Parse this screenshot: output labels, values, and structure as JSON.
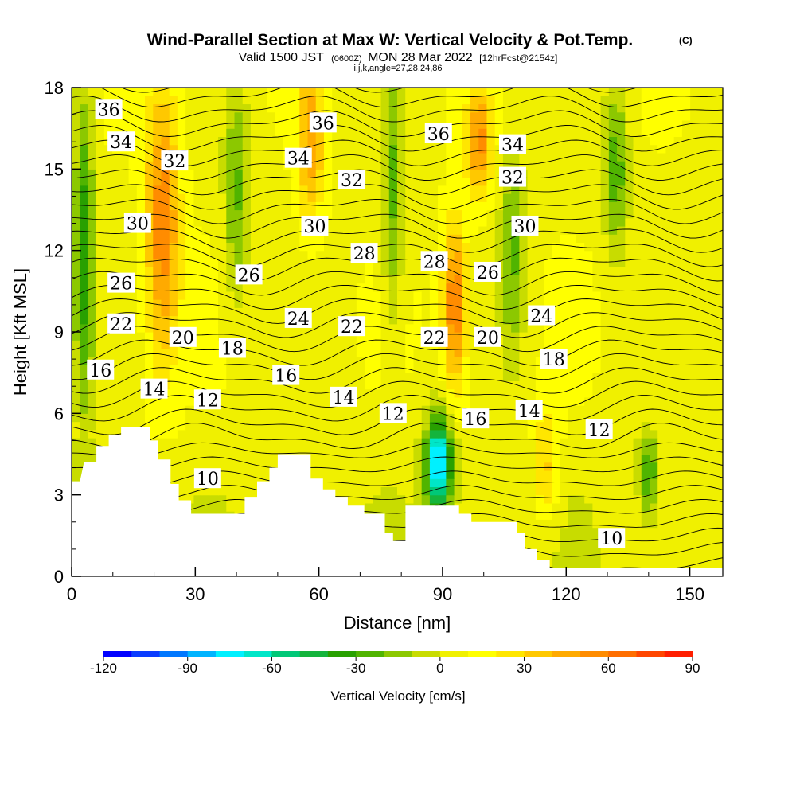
{
  "chart_data": {
    "type": "heatmap",
    "title": "Wind-Parallel Section at Max W: Vertical Velocity & Pot.Temp.",
    "copyright": "(C)",
    "subtitle": {
      "valid_prefix": "Valid 1500 JST",
      "utc": "(0600Z)",
      "date": "MON 28 Mar 2022",
      "fcst": "[12hrFcst@2154z]",
      "indices": "i,j,k,angle=27,28,24,86"
    },
    "xlabel": "Distance [nm]",
    "ylabel": "Height [Kft MSL]",
    "xlim": [
      0,
      158
    ],
    "ylim": [
      0,
      18
    ],
    "xticks": [
      0,
      30,
      60,
      90,
      120,
      150
    ],
    "yticks": [
      0,
      3,
      6,
      9,
      12,
      15,
      18
    ],
    "colorbar": {
      "label": "Vertical Velocity [cm/s]",
      "min": -120,
      "max": 90,
      "step": 10,
      "tick_values": [
        -120,
        -90,
        -60,
        -30,
        0,
        30,
        60,
        90
      ],
      "colors": [
        "#0000ff",
        "#0a3cff",
        "#0078ff",
        "#00b4ff",
        "#00f0ff",
        "#00e6c8",
        "#00c878",
        "#14b43c",
        "#28a000",
        "#50b400",
        "#8cc800",
        "#c8dc00",
        "#f0f000",
        "#ffff00",
        "#ffe600",
        "#ffc800",
        "#ffaa00",
        "#ff8c00",
        "#ff6e00",
        "#ff4600",
        "#ff1e00",
        "#e6001e",
        "#b40046",
        "#8c006e",
        "#6e0096",
        "#50008c"
      ]
    },
    "terrain": [
      [
        0,
        3.5
      ],
      [
        2,
        3.5
      ],
      [
        3,
        4.2
      ],
      [
        6,
        4.2
      ],
      [
        6,
        4.8
      ],
      [
        9,
        4.8
      ],
      [
        9,
        5.2
      ],
      [
        12,
        5.2
      ],
      [
        12,
        5.5
      ],
      [
        19,
        5.5
      ],
      [
        19,
        5.0
      ],
      [
        21,
        5.0
      ],
      [
        21,
        4.3
      ],
      [
        24,
        4.3
      ],
      [
        24,
        3.4
      ],
      [
        26,
        3.4
      ],
      [
        26,
        2.8
      ],
      [
        29,
        2.8
      ],
      [
        29,
        2.3
      ],
      [
        36,
        2.3
      ],
      [
        36,
        2.3
      ],
      [
        42,
        2.3
      ],
      [
        42,
        2.9
      ],
      [
        45,
        2.9
      ],
      [
        45,
        3.5
      ],
      [
        48,
        3.5
      ],
      [
        48,
        4.0
      ],
      [
        50,
        4.0
      ],
      [
        50,
        4.5
      ],
      [
        58,
        4.5
      ],
      [
        58,
        3.6
      ],
      [
        61,
        3.6
      ],
      [
        61,
        3.2
      ],
      [
        64,
        3.2
      ],
      [
        64,
        2.9
      ],
      [
        67,
        2.9
      ],
      [
        67,
        2.6
      ],
      [
        71,
        2.6
      ],
      [
        71,
        2.3
      ],
      [
        76,
        2.3
      ],
      [
        76,
        1.6
      ],
      [
        78,
        1.6
      ],
      [
        78,
        1.3
      ],
      [
        81,
        1.3
      ],
      [
        81,
        2.6
      ],
      [
        88,
        2.6
      ],
      [
        88,
        2.6
      ],
      [
        94,
        2.6
      ],
      [
        94,
        2.3
      ],
      [
        97,
        2.3
      ],
      [
        97,
        2.0
      ],
      [
        102,
        2.0
      ],
      [
        102,
        2.0
      ],
      [
        108,
        2.0
      ],
      [
        108,
        1.6
      ],
      [
        110,
        1.6
      ],
      [
        110,
        1.0
      ],
      [
        113,
        1.0
      ],
      [
        113,
        0.6
      ],
      [
        116,
        0.6
      ],
      [
        116,
        0.3
      ],
      [
        119,
        0.3
      ],
      [
        119,
        0.3
      ],
      [
        158,
        0.3
      ]
    ],
    "series": [
      {
        "name": "w_cells",
        "type": "heatmap",
        "cells": [
          {
            "x": 3,
            "y": 12,
            "rx": 2.5,
            "ry": 6,
            "w": -45
          },
          {
            "x": 22,
            "y": 13,
            "rx": 4,
            "ry": 5,
            "w": 50
          },
          {
            "x": 40,
            "y": 14,
            "rx": 3,
            "ry": 4,
            "w": -30
          },
          {
            "x": 58,
            "y": 16,
            "rx": 3,
            "ry": 3,
            "w": 40
          },
          {
            "x": 78,
            "y": 14,
            "rx": 2.5,
            "ry": 5,
            "w": -30
          },
          {
            "x": 93,
            "y": 10,
            "rx": 3,
            "ry": 3,
            "w": 55
          },
          {
            "x": 99,
            "y": 16,
            "rx": 3,
            "ry": 2,
            "w": 45
          },
          {
            "x": 89,
            "y": 4.2,
            "rx": 3,
            "ry": 1.8,
            "w": -90
          },
          {
            "x": 107,
            "y": 12,
            "rx": 3,
            "ry": 4,
            "w": -30
          },
          {
            "x": 132,
            "y": 15,
            "rx": 3,
            "ry": 3,
            "w": -35
          },
          {
            "x": 140,
            "y": 3.8,
            "rx": 2,
            "ry": 1.5,
            "w": -35
          },
          {
            "x": 115,
            "y": 4,
            "rx": 3,
            "ry": 2,
            "w": 30
          }
        ]
      },
      {
        "name": "theta_contours",
        "type": "line",
        "levels": [
          10,
          12,
          14,
          16,
          18,
          20,
          22,
          24,
          26,
          28,
          30,
          32,
          34,
          36
        ]
      }
    ],
    "annotations": [
      {
        "text": "36",
        "x": 9,
        "y": 17.2
      },
      {
        "text": "36",
        "x": 61,
        "y": 16.7
      },
      {
        "text": "36",
        "x": 89,
        "y": 16.3
      },
      {
        "text": "34",
        "x": 12,
        "y": 16.0
      },
      {
        "text": "34",
        "x": 55,
        "y": 15.4
      },
      {
        "text": "34",
        "x": 107,
        "y": 15.9
      },
      {
        "text": "32",
        "x": 25,
        "y": 15.3
      },
      {
        "text": "32",
        "x": 68,
        "y": 14.6
      },
      {
        "text": "32",
        "x": 107,
        "y": 14.7
      },
      {
        "text": "30",
        "x": 16,
        "y": 13.0
      },
      {
        "text": "30",
        "x": 59,
        "y": 12.9
      },
      {
        "text": "30",
        "x": 110,
        "y": 12.9
      },
      {
        "text": "28",
        "x": 71,
        "y": 11.9
      },
      {
        "text": "28",
        "x": 88,
        "y": 11.6
      },
      {
        "text": "26",
        "x": 12,
        "y": 10.8
      },
      {
        "text": "26",
        "x": 43,
        "y": 11.1
      },
      {
        "text": "26",
        "x": 101,
        "y": 11.2
      },
      {
        "text": "24",
        "x": 55,
        "y": 9.5
      },
      {
        "text": "24",
        "x": 114,
        "y": 9.6
      },
      {
        "text": "22",
        "x": 12,
        "y": 9.3
      },
      {
        "text": "22",
        "x": 68,
        "y": 9.2
      },
      {
        "text": "22",
        "x": 88,
        "y": 8.8
      },
      {
        "text": "20",
        "x": 27,
        "y": 8.8
      },
      {
        "text": "20",
        "x": 101,
        "y": 8.8
      },
      {
        "text": "18",
        "x": 39,
        "y": 8.4
      },
      {
        "text": "18",
        "x": 117,
        "y": 8.0
      },
      {
        "text": "16",
        "x": 7,
        "y": 7.6
      },
      {
        "text": "16",
        "x": 52,
        "y": 7.4
      },
      {
        "text": "16",
        "x": 98,
        "y": 5.8
      },
      {
        "text": "14",
        "x": 20,
        "y": 6.9
      },
      {
        "text": "14",
        "x": 66,
        "y": 6.6
      },
      {
        "text": "14",
        "x": 111,
        "y": 6.1
      },
      {
        "text": "12",
        "x": 33,
        "y": 6.5
      },
      {
        "text": "12",
        "x": 78,
        "y": 6.0
      },
      {
        "text": "12",
        "x": 128,
        "y": 5.4
      },
      {
        "text": "10",
        "x": 33,
        "y": 3.6
      },
      {
        "text": "10",
        "x": 131,
        "y": 1.4
      }
    ]
  }
}
